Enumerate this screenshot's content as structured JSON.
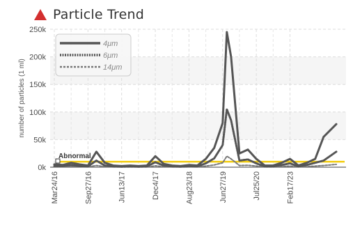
{
  "header": {
    "title": "Particle Trend",
    "icon": "warning-triangle-icon",
    "icon_color": "#d32f2f"
  },
  "chart_data": {
    "type": "line",
    "ylabel": "number of particles (1 ml)",
    "ylim": [
      0,
      250000
    ],
    "yticks": [
      {
        "value": 0,
        "label": "0k"
      },
      {
        "value": 50000,
        "label": "50k"
      },
      {
        "value": 100000,
        "label": "100k"
      },
      {
        "value": 150000,
        "label": "150k"
      },
      {
        "value": 200000,
        "label": "200k"
      },
      {
        "value": 250000,
        "label": "250k"
      }
    ],
    "xlim": [
      0,
      34
    ],
    "xticks": [
      {
        "x": 0,
        "label": "Mar24/16"
      },
      {
        "x": 4,
        "label": "Sep27/16"
      },
      {
        "x": 8,
        "label": "Jun13/17"
      },
      {
        "x": 12,
        "label": "Dec4/17"
      },
      {
        "x": 16,
        "label": "Aug23/18"
      },
      {
        "x": 20,
        "label": "Jun27/19"
      },
      {
        "x": 24,
        "label": "Jul25/20"
      },
      {
        "x": 28,
        "label": "Feb17/23"
      }
    ],
    "grid": true,
    "legend": "top-left",
    "series": [
      {
        "name": "4μm",
        "color": "#555555",
        "dash": "solid",
        "x": [
          0,
          1,
          2,
          3,
          4,
          5,
          6,
          7,
          8,
          9,
          10,
          11,
          12,
          13,
          14,
          15,
          16,
          17,
          18,
          19,
          20,
          20.5,
          21,
          22,
          23,
          24,
          25,
          26,
          27,
          28,
          29,
          30,
          31,
          32,
          33.5
        ],
        "y": [
          5000,
          4000,
          8000,
          5000,
          3000,
          28000,
          8000,
          3000,
          2000,
          3000,
          2000,
          3000,
          20000,
          6000,
          3000,
          2000,
          4000,
          3000,
          15000,
          35000,
          80000,
          245000,
          200000,
          25000,
          32000,
          15000,
          3000,
          3000,
          8000,
          15000,
          3000,
          8000,
          15000,
          55000,
          78000
        ]
      },
      {
        "name": "6μm",
        "color": "#555555",
        "dash": "dotted",
        "x": [
          0,
          1,
          2,
          3,
          4,
          5,
          6,
          7,
          8,
          9,
          10,
          11,
          12,
          13,
          14,
          15,
          16,
          17,
          18,
          19,
          20,
          20.5,
          21,
          22,
          23,
          24,
          25,
          26,
          27,
          28,
          29,
          30,
          31,
          32,
          33.5
        ],
        "y": [
          2000,
          2000,
          4000,
          2000,
          1500,
          12000,
          3000,
          1500,
          1000,
          1500,
          1000,
          1500,
          9000,
          3000,
          1500,
          1000,
          2000,
          1500,
          7000,
          16000,
          40000,
          105000,
          85000,
          12000,
          14000,
          7000,
          1500,
          1500,
          4000,
          7000,
          1500,
          4000,
          8000,
          12000,
          28000
        ]
      },
      {
        "name": "14μm",
        "color": "#777777",
        "dash": "dashed",
        "x": [
          0,
          1,
          2,
          3,
          4,
          5,
          6,
          7,
          8,
          9,
          10,
          11,
          12,
          13,
          14,
          15,
          16,
          17,
          18,
          19,
          20,
          20.5,
          21,
          22,
          23,
          24,
          25,
          26,
          27,
          28,
          29,
          30,
          31,
          32,
          33.5
        ],
        "y": [
          800,
          700,
          1200,
          700,
          500,
          3000,
          1000,
          500,
          400,
          500,
          400,
          500,
          2500,
          900,
          500,
          400,
          600,
          500,
          2000,
          4000,
          8000,
          20000,
          15000,
          3000,
          3500,
          2000,
          500,
          500,
          1200,
          2000,
          500,
          1000,
          2000,
          3000,
          5000
        ]
      }
    ],
    "threshold": {
      "label": "Abnormal",
      "value": 10000,
      "color": "#f2cc0c"
    }
  }
}
